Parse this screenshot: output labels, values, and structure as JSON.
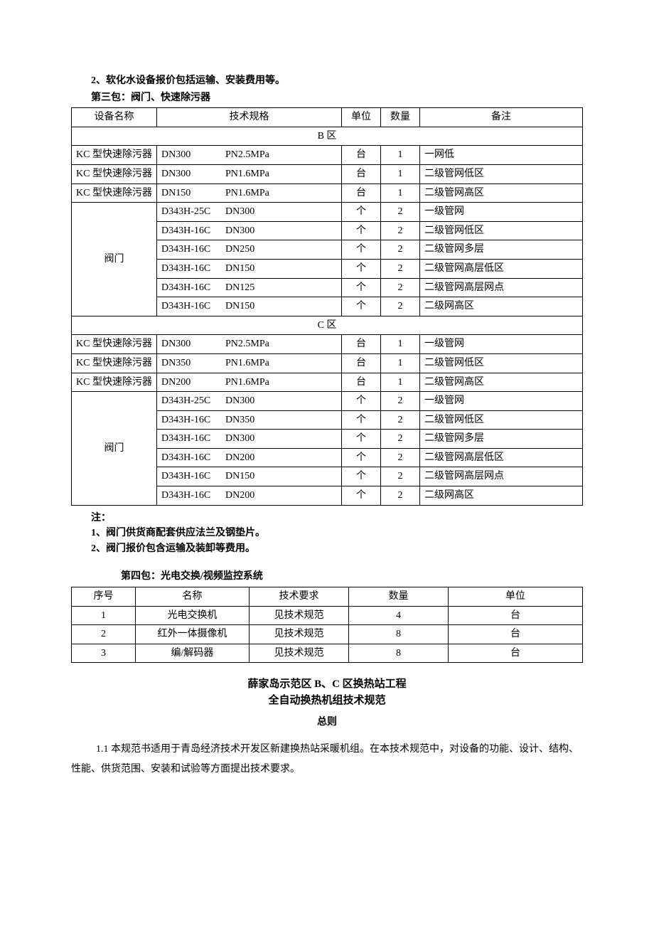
{
  "top_note": "2、软化水设备报价包括运输、安装费用等。",
  "pkg3_heading": "第三包：阀门、快速除污器",
  "table1": {
    "headers": {
      "name": "设备名称",
      "spec": "技术规格",
      "unit": "单位",
      "qty": "数量",
      "remark": "备注"
    },
    "zoneB_label": "B 区",
    "zoneB_rows_single": [
      {
        "name": "KC 型快速除污器",
        "spec_a": "DN300",
        "spec_b": "PN2.5MPa",
        "unit": "台",
        "qty": "1",
        "remark": "一网低"
      },
      {
        "name": "KC 型快速除污器",
        "spec_a": "DN300",
        "spec_b": "PN1.6MPa",
        "unit": "台",
        "qty": "1",
        "remark": "二级管网低区"
      },
      {
        "name": "KC 型快速除污器",
        "spec_a": "DN150",
        "spec_b": "PN1.6MPa",
        "unit": "台",
        "qty": "1",
        "remark": "二级管网高区"
      }
    ],
    "zoneB_valve_label": "阀门",
    "zoneB_valve_rows": [
      {
        "spec_a": "D343H-25C",
        "spec_b": "DN300",
        "unit": "个",
        "qty": "2",
        "remark": "一级管网"
      },
      {
        "spec_a": "D343H-16C",
        "spec_b": "DN300",
        "unit": "个",
        "qty": "2",
        "remark": "二级管网低区"
      },
      {
        "spec_a": "D343H-16C",
        "spec_b": "DN250",
        "unit": "个",
        "qty": "2",
        "remark": "二级管网多层"
      },
      {
        "spec_a": "D343H-16C",
        "spec_b": "DN150",
        "unit": "个",
        "qty": "2",
        "remark": "二级管网高层低区"
      },
      {
        "spec_a": "D343H-16C",
        "spec_b": "DN125",
        "unit": "个",
        "qty": "2",
        "remark": "二级管网高层网点"
      },
      {
        "spec_a": "D343H-16C",
        "spec_b": "DN150",
        "unit": "个",
        "qty": "2",
        "remark": "二级网高区"
      }
    ],
    "zoneC_label": "C 区",
    "zoneC_rows_single": [
      {
        "name": "KC 型快速除污器",
        "spec_a": "DN300",
        "spec_b": "PN2.5MPa",
        "unit": "台",
        "qty": "1",
        "remark": "一级管网"
      },
      {
        "name": "KC 型快速除污器",
        "spec_a": "DN350",
        "spec_b": "PN1.6MPa",
        "unit": "台",
        "qty": "1",
        "remark": "二级管网低区"
      },
      {
        "name": "KC 型快速除污器",
        "spec_a": "DN200",
        "spec_b": "PN1.6MPa",
        "unit": "台",
        "qty": "1",
        "remark": "二级管网高区"
      }
    ],
    "zoneC_valve_label": "阀门",
    "zoneC_valve_rows": [
      {
        "spec_a": "D343H-25C",
        "spec_b": "DN300",
        "unit": "个",
        "qty": "2",
        "remark": "一级管网"
      },
      {
        "spec_a": "D343H-16C",
        "spec_b": "DN350",
        "unit": "个",
        "qty": "2",
        "remark": "二级管网低区"
      },
      {
        "spec_a": "D343H-16C",
        "spec_b": "DN300",
        "unit": "个",
        "qty": "2",
        "remark": "二级管网多层"
      },
      {
        "spec_a": "D343H-16C",
        "spec_b": "DN200",
        "unit": "个",
        "qty": "2",
        "remark": "二级管网高层低区"
      },
      {
        "spec_a": "D343H-16C",
        "spec_b": "DN150",
        "unit": "个",
        "qty": "2",
        "remark": "二级管网高层网点"
      },
      {
        "spec_a": "D343H-16C",
        "spec_b": "DN200",
        "unit": "个",
        "qty": "2",
        "remark": "二级网高区"
      }
    ]
  },
  "notes3": {
    "heading": "注：",
    "line1": "1、阀门供货商配套供应法兰及钢垫片。",
    "line2": "2、阀门报价包含运输及装卸等费用。"
  },
  "pkg4_heading": "第四包：光电交换/视频监控系统",
  "table2": {
    "headers": {
      "no": "序号",
      "name": "名称",
      "req": "技术要求",
      "qty": "数量",
      "unit": "单位"
    },
    "rows": [
      {
        "no": "1",
        "name": "光电交换机",
        "req": "见技术规范",
        "qty": "4",
        "unit": "台"
      },
      {
        "no": "2",
        "name": "红外一体摄像机",
        "req": "见技术规范",
        "qty": "8",
        "unit": "台"
      },
      {
        "no": "3",
        "name": "编/解码器",
        "req": "见技术规范",
        "qty": "8",
        "unit": "台"
      }
    ]
  },
  "title1": "薛家岛示范区 B、C 区换热站工程",
  "title2": "全自动换热机组技术规范",
  "general_heading": "总则",
  "para_1_1": "1.1 本规范书适用于青岛经济技术开发区新建换热站采暖机组。在本技术规范中，对设备的功能、设计、结构、性能、供货范围、安装和试验等方面提出技术要求。"
}
